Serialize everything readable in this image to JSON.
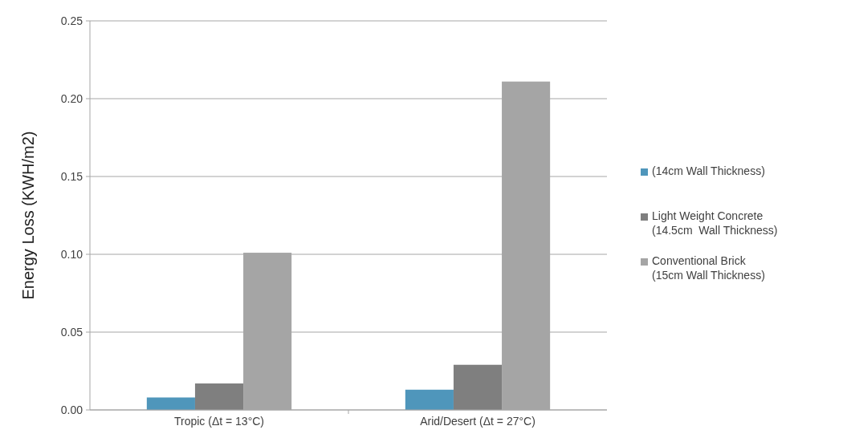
{
  "chart_data": {
    "type": "bar",
    "ylabel": "Energy Loss (KWH/m2)",
    "categories": [
      "Tropic (Δt = 13°C)",
      "Arid/Desert (Δt = 27°C)"
    ],
    "series": [
      {
        "name": "(14cm Wall Thickness)",
        "color": "#4f96bb",
        "values": [
          0.008,
          0.013
        ]
      },
      {
        "name": "Light Weight Concrete (14.5cm  Wall Thickness)",
        "color": "#7f7f7f",
        "values": [
          0.017,
          0.029
        ]
      },
      {
        "name": "Conventional Brick (15cm Wall Thickness)",
        "color": "#a5a5a5",
        "values": [
          0.101,
          0.211
        ]
      }
    ],
    "ylim": [
      0,
      0.25
    ],
    "yticks": [
      {
        "value": 0,
        "label": "0.00"
      },
      {
        "value": 0.05,
        "label": "0.05"
      },
      {
        "value": 0.1,
        "label": "0.10"
      },
      {
        "value": 0.15,
        "label": "0.15"
      },
      {
        "value": 0.2,
        "label": "0.20"
      },
      {
        "value": 0.25,
        "label": "0.25"
      }
    ],
    "grid": "y",
    "legend": "right"
  }
}
